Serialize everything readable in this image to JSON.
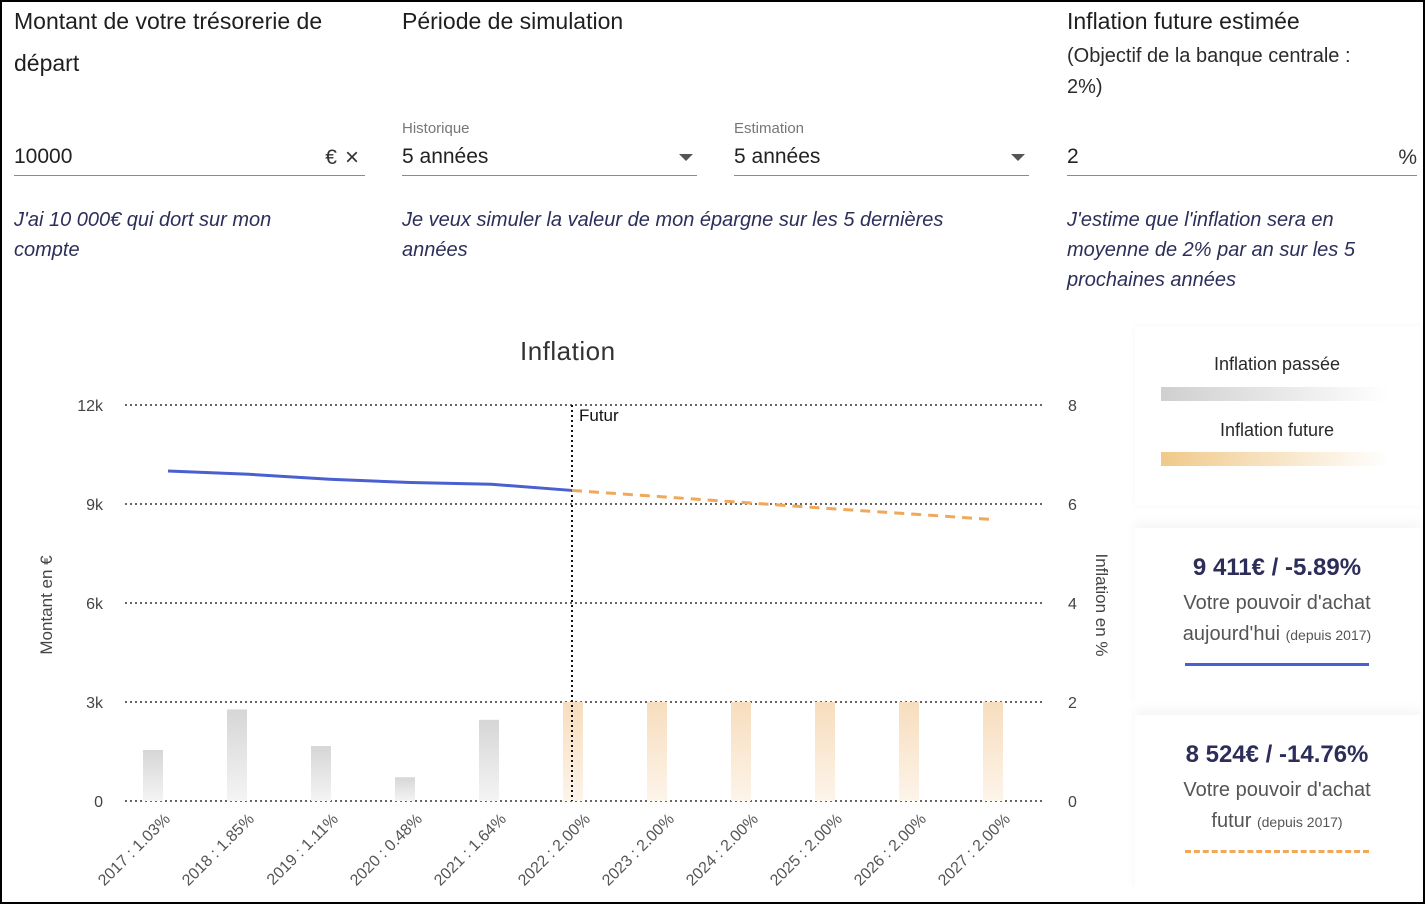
{
  "treasury": {
    "title_line1": "Montant de votre trésorerie de",
    "title_line2": "départ",
    "value": "10000",
    "currency": "€",
    "clear": "×",
    "hint_line1": "J'ai 10 000€ qui dort sur mon",
    "hint_line2": "compte"
  },
  "period": {
    "title": "Période de simulation",
    "history_label": "Historique",
    "history_value": "5 années",
    "estimate_label": "Estimation",
    "estimate_value": "5 années",
    "hint_line1": "Je veux simuler la valeur de mon épargne sur les 5 dernières",
    "hint_line2": "années"
  },
  "inflation_input": {
    "title": "Inflation future estimée",
    "sub_line1": "(Objectif de la banque centrale :",
    "sub_line2": "2%)",
    "value": "2",
    "unit": "%",
    "hint_line1": "J'estime que l'inflation sera en",
    "hint_line2": "moyenne de 2% par an sur les 5",
    "hint_line3": "prochaines années"
  },
  "legend": {
    "past": "Inflation passée",
    "future": "Inflation future",
    "past_color": "#cfcfcf",
    "future_color": "#f0c98a"
  },
  "cards": {
    "today_value": "9 411€ / -5.89%",
    "today_text_line1": "Votre pouvoir d'achat",
    "today_text_line2": "aujourd'hui",
    "today_since": "(depuis 2017)",
    "today_color": "#4a5fd0",
    "future_value": "8 524€ / -14.76%",
    "future_text_line1": "Votre pouvoir d'achat",
    "future_text_line2": "futur",
    "future_since": "(depuis 2017)",
    "future_color": "#f0a85a"
  },
  "chart_data": {
    "type": "bar",
    "title": "Inflation",
    "ylabel_left": "Montant en €",
    "ylabel_right": "Inflation en %",
    "left_ticks": [
      "0",
      "3k",
      "6k",
      "9k",
      "12k"
    ],
    "right_ticks": [
      "0",
      "2",
      "4",
      "6",
      "8"
    ],
    "ylim_left": [
      0,
      12000
    ],
    "ylim_right": [
      0,
      8
    ],
    "future_marker_label": "Futur",
    "future_marker_category": "2022 : 2.00%",
    "categories": [
      "2017 : 1.03%",
      "2018 : 1.85%",
      "2019 : 1.11%",
      "2020 : 0.48%",
      "2021 : 1.64%",
      "2022 : 2.00%",
      "2023 : 2.00%",
      "2024 : 2.00%",
      "2025 : 2.00%",
      "2026 : 2.00%",
      "2027 : 2.00%"
    ],
    "inflation_values": [
      1.03,
      1.85,
      1.11,
      0.48,
      1.64,
      2.0,
      2.0,
      2.0,
      2.0,
      2.0,
      2.0
    ],
    "past_amounts": [
      10000,
      9900,
      9750,
      9650,
      9600,
      9411
    ],
    "future_amounts": [
      9411,
      9230,
      9050,
      8870,
      8700,
      8524
    ],
    "grid": true
  }
}
